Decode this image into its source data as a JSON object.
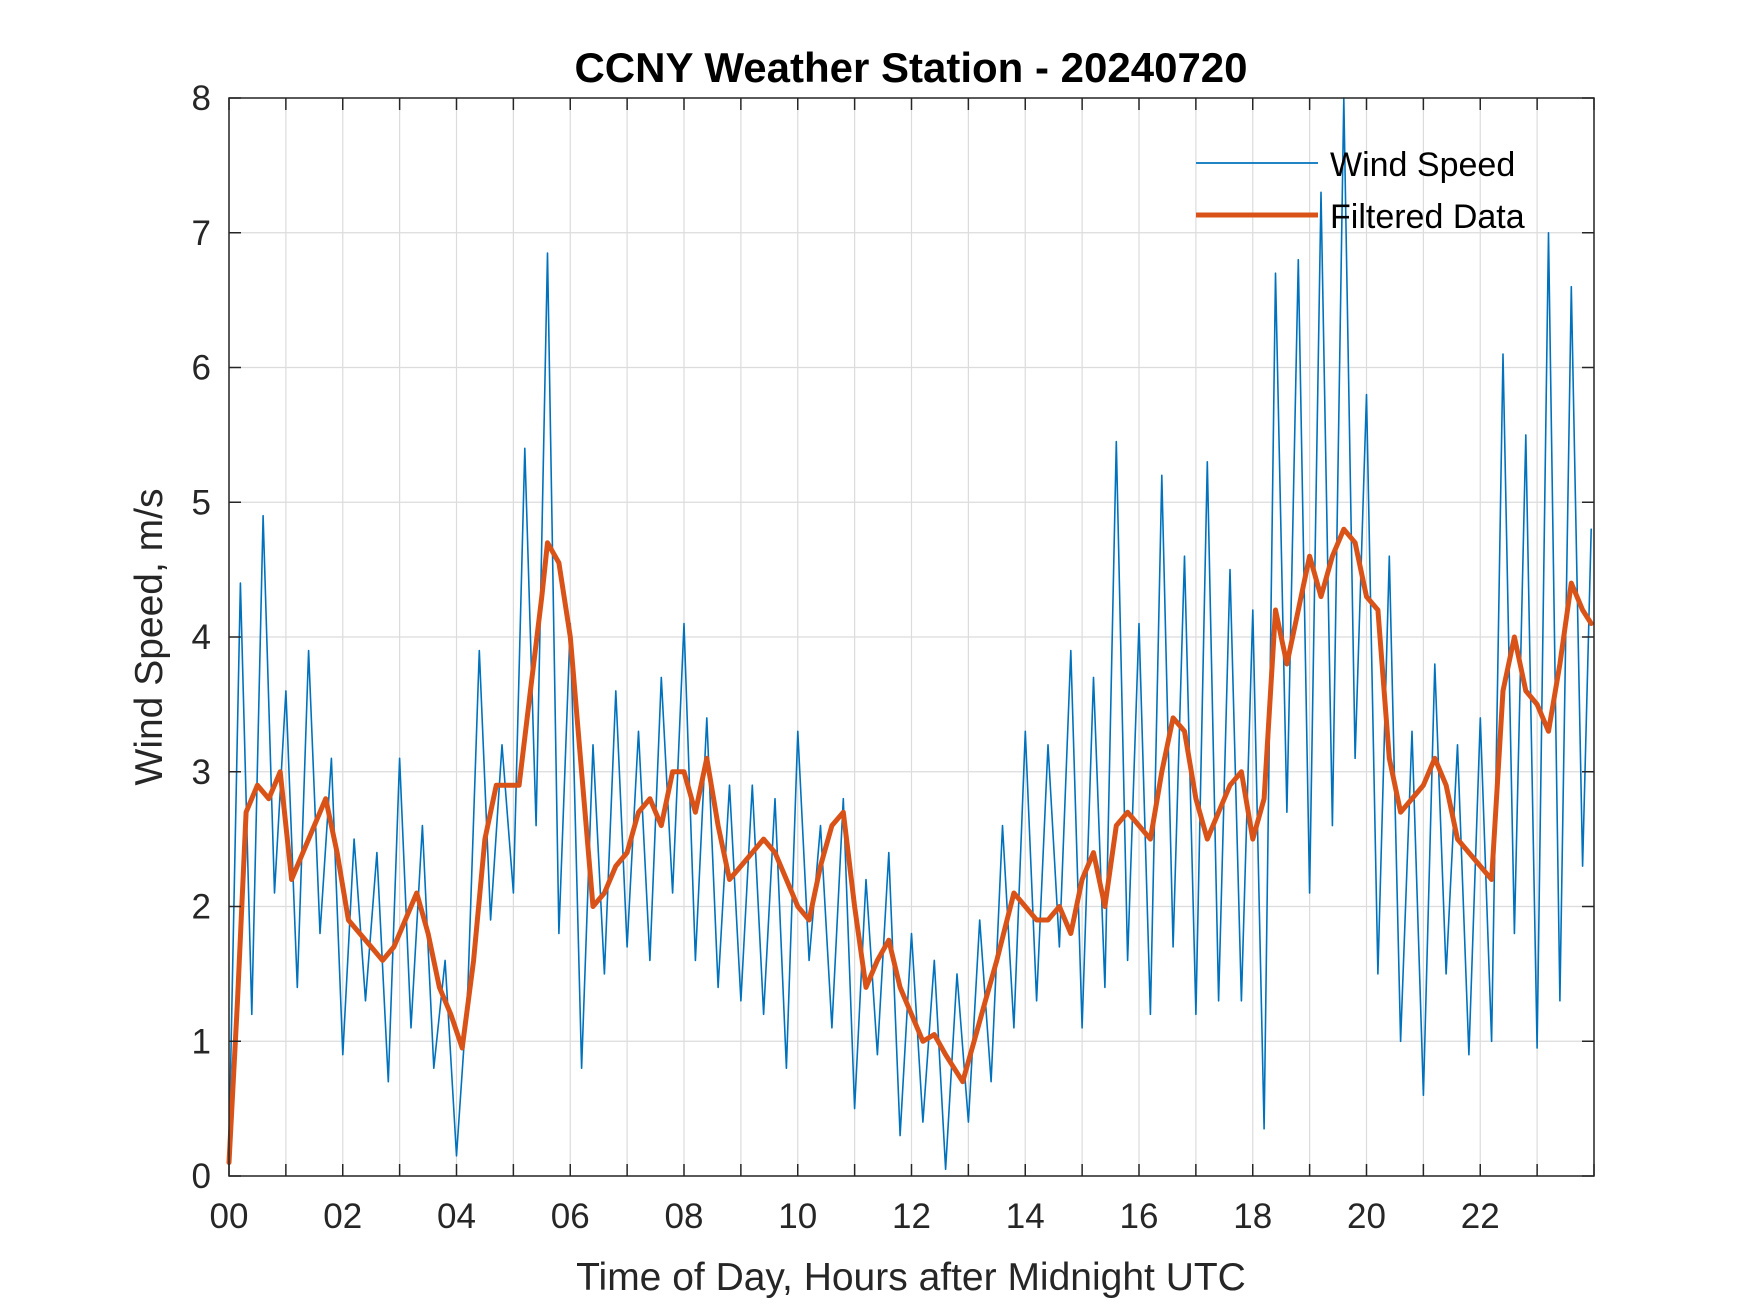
{
  "chart_data": {
    "type": "line",
    "title": "CCNY Weather Station - 20240720",
    "xlabel": "Time of Day, Hours after Midnight UTC",
    "ylabel": "Wind Speed, m/s",
    "xlim": [
      0,
      24
    ],
    "ylim": [
      0,
      8
    ],
    "grid": true,
    "legend_location": "top-right",
    "x_ticks": [
      0,
      2,
      4,
      6,
      8,
      10,
      12,
      14,
      16,
      18,
      20,
      22
    ],
    "x_tick_labels": [
      "00",
      "02",
      "04",
      "06",
      "08",
      "10",
      "12",
      "14",
      "16",
      "18",
      "20",
      "22"
    ],
    "y_ticks": [
      0,
      1,
      2,
      3,
      4,
      5,
      6,
      7,
      8
    ],
    "y_tick_labels": [
      "0",
      "1",
      "2",
      "3",
      "4",
      "5",
      "6",
      "7",
      "8"
    ],
    "series": [
      {
        "name": "Wind Speed",
        "color": "#0072BD",
        "style": "thin",
        "x": [
          0,
          0.2,
          0.4,
          0.6,
          0.8,
          1,
          1.2,
          1.4,
          1.6,
          1.8,
          2,
          2.2,
          2.4,
          2.6,
          2.8,
          3,
          3.2,
          3.4,
          3.6,
          3.8,
          4,
          4.2,
          4.4,
          4.6,
          4.8,
          5,
          5.2,
          5.4,
          5.6,
          5.8,
          6,
          6.2,
          6.4,
          6.6,
          6.8,
          7,
          7.2,
          7.4,
          7.6,
          7.8,
          8,
          8.2,
          8.4,
          8.6,
          8.8,
          9,
          9.2,
          9.4,
          9.6,
          9.8,
          10,
          10.2,
          10.4,
          10.6,
          10.8,
          11,
          11.2,
          11.4,
          11.6,
          11.8,
          12,
          12.2,
          12.4,
          12.6,
          12.8,
          13,
          13.2,
          13.4,
          13.6,
          13.8,
          14,
          14.2,
          14.4,
          14.6,
          14.8,
          15,
          15.2,
          15.4,
          15.6,
          15.8,
          16,
          16.2,
          16.4,
          16.6,
          16.8,
          17,
          17.2,
          17.4,
          17.6,
          17.8,
          18,
          18.2,
          18.4,
          18.6,
          18.8,
          19,
          19.2,
          19.4,
          19.6,
          19.8,
          20,
          20.2,
          20.4,
          20.6,
          20.8,
          21,
          21.2,
          21.4,
          21.6,
          21.8,
          22,
          22.2,
          22.4,
          22.6,
          22.8,
          23,
          23.2,
          23.4,
          23.6,
          23.8,
          23.95
        ],
        "y": [
          0.2,
          4.4,
          1.2,
          4.9,
          2.1,
          3.6,
          1.4,
          3.9,
          1.8,
          3.1,
          0.9,
          2.5,
          1.3,
          2.4,
          0.7,
          3.1,
          1.1,
          2.6,
          0.8,
          1.6,
          0.15,
          1.4,
          3.9,
          1.9,
          3.2,
          2.1,
          5.4,
          2.6,
          6.85,
          1.8,
          4.1,
          0.8,
          3.2,
          1.5,
          3.6,
          1.7,
          3.3,
          1.6,
          3.7,
          2.1,
          4.1,
          1.6,
          3.4,
          1.4,
          2.9,
          1.3,
          2.9,
          1.2,
          2.8,
          0.8,
          3.3,
          1.6,
          2.6,
          1.1,
          2.8,
          0.5,
          2.2,
          0.9,
          2.4,
          0.3,
          1.8,
          0.4,
          1.6,
          0.05,
          1.5,
          0.4,
          1.9,
          0.7,
          2.6,
          1.1,
          3.3,
          1.3,
          3.2,
          1.7,
          3.9,
          1.1,
          3.7,
          1.4,
          5.45,
          1.6,
          4.1,
          1.2,
          5.2,
          1.7,
          4.6,
          1.2,
          5.3,
          1.3,
          4.5,
          1.3,
          4.2,
          0.35,
          6.7,
          2.7,
          6.8,
          2.1,
          7.3,
          2.6,
          8.0,
          3.1,
          5.8,
          1.5,
          4.6,
          1.0,
          3.3,
          0.6,
          3.8,
          1.5,
          3.2,
          0.9,
          3.4,
          1.0,
          6.1,
          1.8,
          5.5,
          0.95,
          7.0,
          1.3,
          6.6,
          2.3,
          4.8
        ],
        "peaks_annotated_by_eye": "high-frequency noisy series, values estimated from gridlines"
      },
      {
        "name": "Filtered Data",
        "color": "#D95319",
        "style": "thick",
        "x": [
          0,
          0.15,
          0.3,
          0.5,
          0.7,
          0.9,
          1.1,
          1.3,
          1.5,
          1.7,
          1.9,
          2.1,
          2.3,
          2.5,
          2.7,
          2.9,
          3.1,
          3.3,
          3.5,
          3.7,
          3.9,
          4.1,
          4.3,
          4.5,
          4.7,
          4.9,
          5.1,
          5.3,
          5.5,
          5.6,
          5.8,
          6.0,
          6.2,
          6.4,
          6.6,
          6.8,
          7.0,
          7.2,
          7.4,
          7.6,
          7.8,
          8.0,
          8.2,
          8.4,
          8.6,
          8.8,
          9.0,
          9.2,
          9.4,
          9.6,
          9.8,
          10.0,
          10.2,
          10.4,
          10.6,
          10.8,
          11.0,
          11.2,
          11.4,
          11.6,
          11.8,
          12.0,
          12.2,
          12.4,
          12.6,
          12.9,
          13.1,
          13.3,
          13.5,
          13.8,
          14.0,
          14.2,
          14.4,
          14.6,
          14.8,
          15.0,
          15.2,
          15.4,
          15.6,
          15.8,
          16.0,
          16.2,
          16.4,
          16.6,
          16.8,
          17.0,
          17.2,
          17.4,
          17.6,
          17.8,
          18.0,
          18.2,
          18.4,
          18.6,
          18.8,
          19.0,
          19.2,
          19.4,
          19.6,
          19.8,
          20.0,
          20.2,
          20.4,
          20.6,
          20.8,
          21.0,
          21.2,
          21.4,
          21.6,
          21.8,
          22.0,
          22.2,
          22.4,
          22.6,
          22.8,
          23.0,
          23.2,
          23.4,
          23.6,
          23.8,
          23.95
        ],
        "y": [
          0.1,
          1.3,
          2.7,
          2.9,
          2.8,
          3.0,
          2.2,
          2.4,
          2.6,
          2.8,
          2.4,
          1.9,
          1.8,
          1.7,
          1.6,
          1.7,
          1.9,
          2.1,
          1.8,
          1.4,
          1.2,
          0.95,
          1.6,
          2.5,
          2.9,
          2.9,
          2.9,
          3.6,
          4.3,
          4.7,
          4.55,
          4.0,
          3.0,
          2.0,
          2.1,
          2.3,
          2.4,
          2.7,
          2.8,
          2.6,
          3.0,
          3.0,
          2.7,
          3.1,
          2.6,
          2.2,
          2.3,
          2.4,
          2.5,
          2.4,
          2.2,
          2.0,
          1.9,
          2.3,
          2.6,
          2.7,
          2.0,
          1.4,
          1.6,
          1.75,
          1.4,
          1.2,
          1.0,
          1.05,
          0.9,
          0.7,
          1.0,
          1.3,
          1.6,
          2.1,
          2.0,
          1.9,
          1.9,
          2.0,
          1.8,
          2.2,
          2.4,
          2.0,
          2.6,
          2.7,
          2.6,
          2.5,
          3.0,
          3.4,
          3.3,
          2.8,
          2.5,
          2.7,
          2.9,
          3.0,
          2.5,
          2.8,
          4.2,
          3.8,
          4.2,
          4.6,
          4.3,
          4.6,
          4.8,
          4.7,
          4.3,
          4.2,
          3.1,
          2.7,
          2.8,
          2.9,
          3.1,
          2.9,
          2.5,
          2.4,
          2.3,
          2.2,
          3.6,
          4.0,
          3.6,
          3.5,
          3.3,
          3.8,
          4.4,
          4.2,
          4.1
        ],
        "note": "values estimated from gridlines"
      }
    ]
  }
}
